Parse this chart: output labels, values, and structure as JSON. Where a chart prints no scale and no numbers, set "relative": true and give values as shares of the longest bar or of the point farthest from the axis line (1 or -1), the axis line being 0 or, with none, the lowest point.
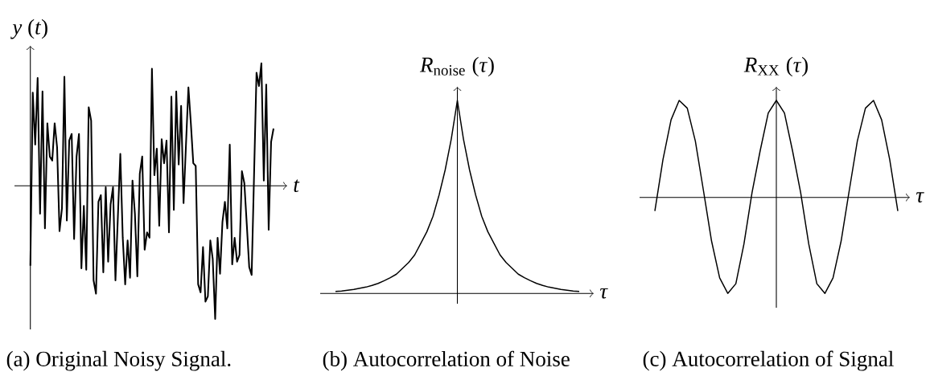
{
  "chart_data": [
    {
      "type": "line",
      "relative": true,
      "color": "#000000",
      "line_style": "solid",
      "xlabel": "*t*",
      "ylabel": "*y* (*t*)",
      "annotations": [
        "(a) Original Noisy Signal."
      ],
      "categories": [
        null,
        null,
        null,
        null,
        null,
        null,
        null,
        null,
        null,
        null,
        null,
        null,
        null,
        null,
        null,
        null,
        null,
        null,
        null,
        null,
        null,
        null,
        null,
        null,
        null,
        null,
        null,
        null,
        null,
        null,
        null,
        null,
        null,
        null,
        null,
        null,
        null,
        null,
        null,
        null,
        null,
        null,
        null,
        null,
        null,
        null,
        null,
        null,
        null,
        null,
        null,
        null,
        null,
        null,
        null,
        null,
        null,
        null,
        null,
        null,
        null,
        null,
        null,
        null,
        null,
        null,
        null,
        null,
        null,
        null,
        null,
        null,
        null,
        null,
        null,
        null,
        null,
        null,
        null,
        null,
        null,
        null,
        null,
        null,
        null,
        null,
        null,
        null,
        null,
        null,
        null,
        null,
        null,
        null,
        null,
        null,
        null,
        null,
        null,
        null,
        null
      ],
      "values": [
        -0.6,
        0.7,
        0.31,
        0.81,
        -0.21,
        0.71,
        -0.32,
        0.47,
        0.22,
        0.19,
        0.47,
        0.29,
        -0.34,
        -0.17,
        0.82,
        -0.26,
        0.34,
        0.39,
        -0.4,
        0.22,
        0.39,
        -0.62,
        -0.15,
        -0.63,
        0.59,
        0.49,
        -0.71,
        -0.81,
        -0.12,
        -0.07,
        -0.65,
        -0.01,
        -0.57,
        -0.14,
        -0.01,
        -0.71,
        -0.23,
        0.24,
        -0.39,
        -0.74,
        -0.41,
        -0.69,
        0.04,
        -0.21,
        -0.68,
        0.09,
        0.22,
        -0.48,
        -0.35,
        -0.39,
        0.88,
        0.08,
        0.28,
        -0.3,
        0.35,
        0.17,
        0.34,
        -0.35,
        0.67,
        -0.18,
        0.71,
        0.16,
        0.6,
        -0.13,
        0.31,
        0.74,
        0.47,
        0.17,
        0.15,
        -0.74,
        -0.8,
        -0.46,
        -0.87,
        -0.83,
        -0.41,
        -0.55,
        -1,
        -0.39,
        -0.66,
        -0.27,
        -0.12,
        -0.32,
        0.31,
        -0.59,
        -0.39,
        -0.57,
        -0.52,
        0.11,
        0.02,
        -0.29,
        -0.61,
        -0.67,
        0.09,
        0.85,
        0.75,
        0.92,
        0.04,
        0.76,
        -0.33,
        0.33,
        0.43
      ]
    },
    {
      "type": "line",
      "relative": true,
      "color": "#000000",
      "line_style": "solid",
      "xlabel": "*τ*",
      "ylabel": "*R*$_{noise}$ (*τ*)",
      "annotations": [
        "(b) Autocorrelation of Noise"
      ],
      "categories": [
        null,
        null,
        null,
        null,
        null,
        null,
        null,
        null,
        null,
        null,
        null,
        null,
        null,
        null,
        null,
        null,
        null,
        null,
        null,
        null,
        null,
        null,
        null,
        null,
        null,
        null,
        null,
        null,
        null,
        null,
        null,
        null,
        null,
        null,
        null,
        null,
        null,
        null,
        null,
        null,
        null
      ],
      "values": [
        0.011,
        0.013,
        0.017,
        0.021,
        0.027,
        0.033,
        0.042,
        0.052,
        0.066,
        0.082,
        0.1,
        0.13,
        0.16,
        0.2,
        0.26,
        0.32,
        0.4,
        0.51,
        0.64,
        0.8,
        1,
        0.8,
        0.64,
        0.51,
        0.4,
        0.32,
        0.26,
        0.2,
        0.16,
        0.13,
        0.1,
        0.082,
        0.066,
        0.052,
        0.042,
        0.033,
        0.027,
        0.021,
        0.017,
        0.013,
        0.011
      ]
    },
    {
      "type": "line",
      "relative": true,
      "color": "#000000",
      "line_style": "solid",
      "xlabel": "*τ*",
      "ylabel": "*R*$_{XX}$ (*τ*)",
      "annotations": [
        "(c) Autocorrelation of Signal"
      ],
      "categories": [
        null,
        null,
        null,
        null,
        null,
        null,
        null,
        null,
        null,
        null,
        null,
        null,
        null,
        null,
        null,
        null,
        null,
        null,
        null,
        null,
        null,
        null,
        null,
        null,
        null,
        null,
        null,
        null,
        null,
        null,
        null
      ],
      "values": [
        -0.14,
        0.39,
        0.8,
        1,
        0.92,
        0.58,
        0.07,
        -0.45,
        -0.83,
        -0.99,
        -0.89,
        -0.48,
        0.05,
        0.48,
        0.87,
        1,
        0.87,
        0.48,
        0.05,
        -0.48,
        -0.89,
        -0.99,
        -0.83,
        -0.45,
        0.07,
        0.58,
        0.92,
        1,
        0.8,
        0.39,
        -0.14
      ]
    }
  ]
}
